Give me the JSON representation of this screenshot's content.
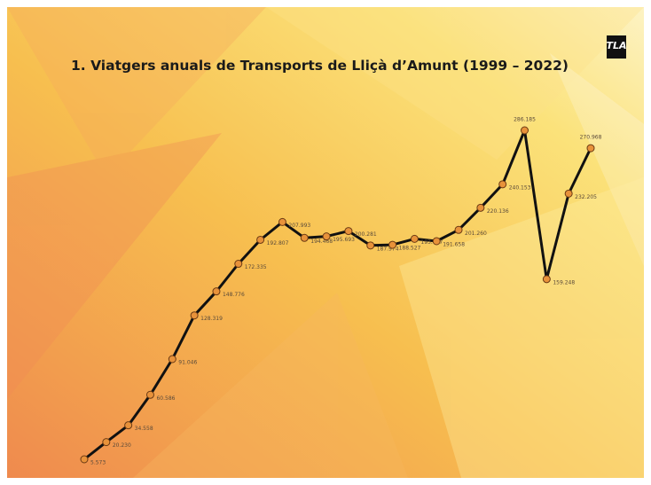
{
  "chart_data": {
    "type": "line",
    "title": "1. Viatgers anuals de Transports de Lliçà d’Amunt (1999 – 2022)",
    "logo": "TLA",
    "color": "#111111",
    "marker_color": "#e8923a",
    "values": [
      5573,
      20230,
      34558,
      60586,
      91046,
      128319,
      148776,
      172335,
      192807,
      207993,
      194468,
      195693,
      200281,
      187974,
      188527,
      193627,
      191658,
      201260,
      220136,
      240153,
      286185,
      159248,
      232205,
      270968
    ],
    "value_labels": [
      "5.573",
      "20.230",
      "34.558",
      "60.586",
      "91.046",
      "128.319",
      "148.776",
      "172.335",
      "192.807",
      "207.993",
      "194.468",
      "195.693",
      "200.281",
      "187.974",
      "188.527",
      "193.627",
      "191.658",
      "201.260",
      "220.136",
      "240.153",
      "286.185",
      "159.248",
      "232.205",
      "270.968"
    ]
  }
}
